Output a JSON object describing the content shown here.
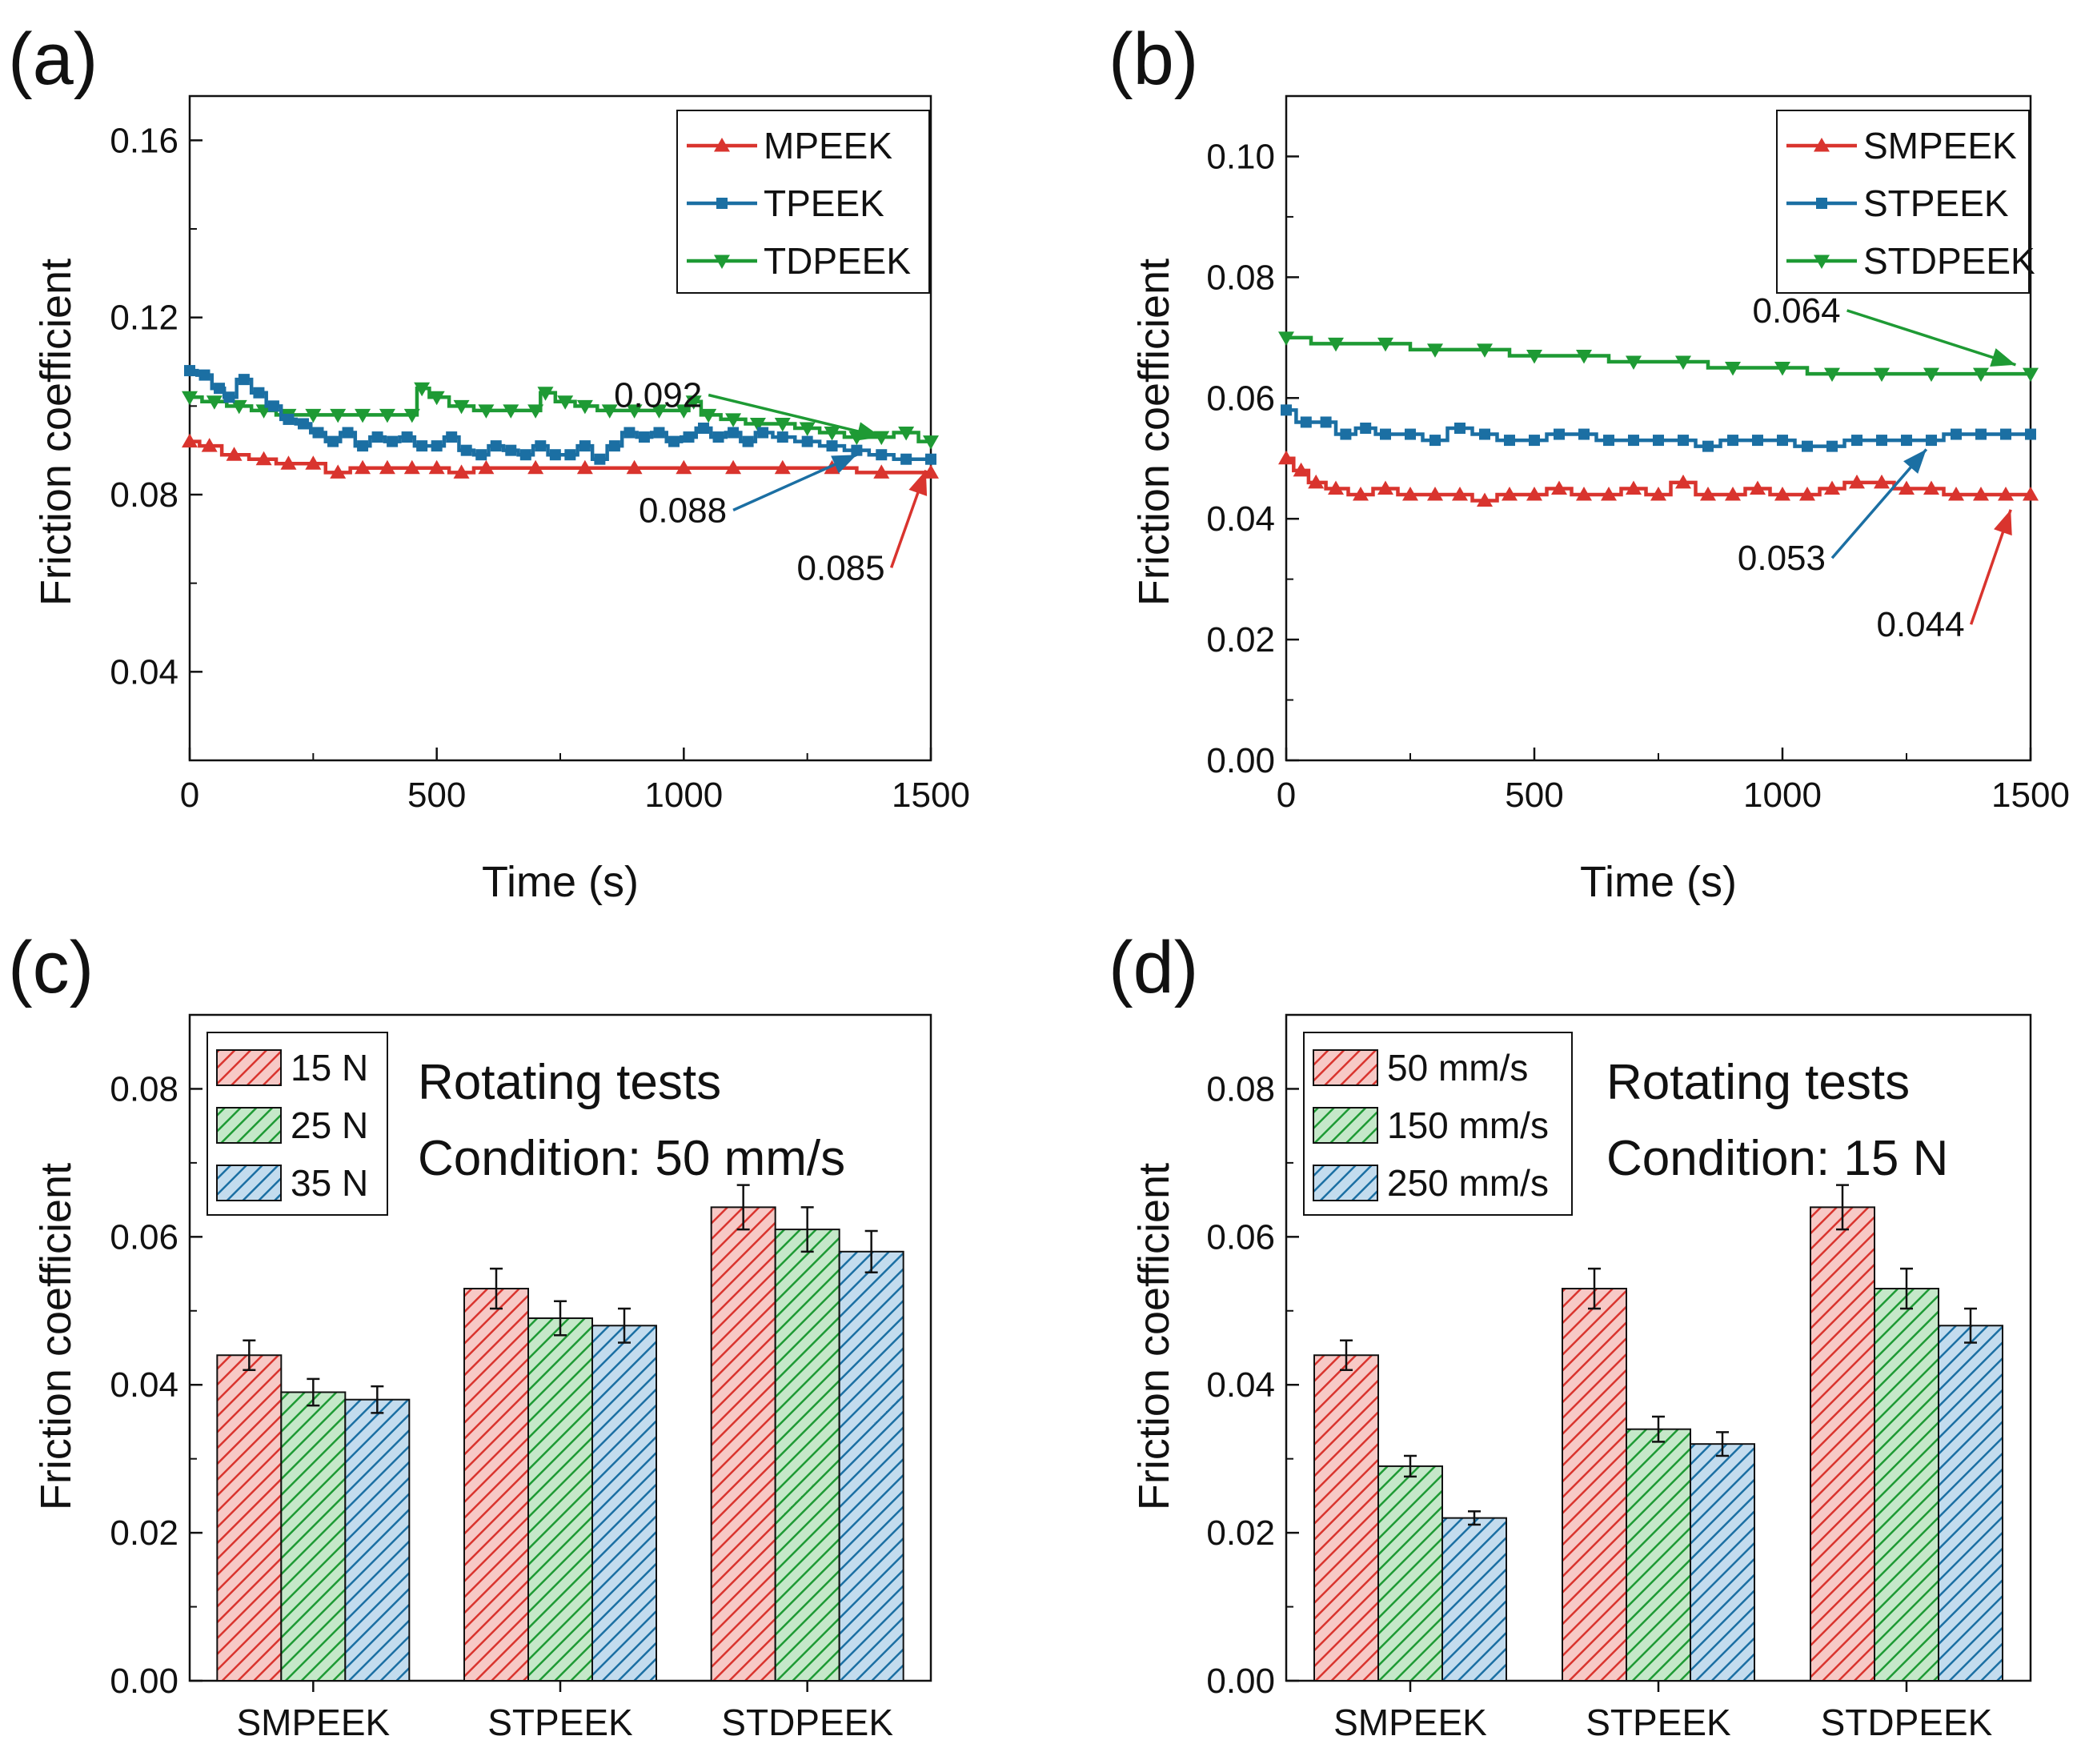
{
  "colors": {
    "red": "#d9342e",
    "blue": "#1b6fa3",
    "green": "#1e9a34",
    "axis": "#111111"
  },
  "chart_data": [
    {
      "id": "a",
      "type": "line",
      "panel_label": "(a)",
      "xlabel": "Time (s)",
      "ylabel": "Friction coefficient",
      "xlim": [
        0,
        1500
      ],
      "ylim": [
        0.02,
        0.17
      ],
      "xticks": [
        "0",
        "500",
        "1000",
        "1500"
      ],
      "xtick_values": [
        0,
        500,
        1000,
        1500
      ],
      "yticks": [
        "0.04",
        "0.08",
        "0.12",
        "0.16"
      ],
      "ytick_values": [
        0.04,
        0.08,
        0.12,
        0.16
      ],
      "legend_position": "top-right",
      "series": [
        {
          "name": "MPEEK",
          "color_key": "red",
          "marker": "triangle-up",
          "points": [
            [
              0,
              0.092
            ],
            [
              40,
              0.091
            ],
            [
              90,
              0.089
            ],
            [
              150,
              0.088
            ],
            [
              200,
              0.087
            ],
            [
              250,
              0.087
            ],
            [
              300,
              0.085
            ],
            [
              350,
              0.086
            ],
            [
              400,
              0.086
            ],
            [
              450,
              0.086
            ],
            [
              500,
              0.086
            ],
            [
              550,
              0.085
            ],
            [
              600,
              0.086
            ],
            [
              700,
              0.086
            ],
            [
              800,
              0.086
            ],
            [
              900,
              0.086
            ],
            [
              1000,
              0.086
            ],
            [
              1100,
              0.086
            ],
            [
              1200,
              0.086
            ],
            [
              1300,
              0.086
            ],
            [
              1400,
              0.085
            ],
            [
              1500,
              0.085
            ]
          ]
        },
        {
          "name": "TPEEK",
          "color_key": "blue",
          "marker": "square",
          "points": [
            [
              0,
              0.108
            ],
            [
              30,
              0.107
            ],
            [
              60,
              0.104
            ],
            [
              80,
              0.102
            ],
            [
              110,
              0.106
            ],
            [
              140,
              0.103
            ],
            [
              170,
              0.1
            ],
            [
              200,
              0.097
            ],
            [
              230,
              0.096
            ],
            [
              260,
              0.094
            ],
            [
              290,
              0.092
            ],
            [
              320,
              0.094
            ],
            [
              350,
              0.091
            ],
            [
              380,
              0.093
            ],
            [
              410,
              0.092
            ],
            [
              440,
              0.093
            ],
            [
              470,
              0.091
            ],
            [
              500,
              0.091
            ],
            [
              530,
              0.093
            ],
            [
              560,
              0.09
            ],
            [
              590,
              0.089
            ],
            [
              620,
              0.091
            ],
            [
              650,
              0.09
            ],
            [
              680,
              0.089
            ],
            [
              710,
              0.091
            ],
            [
              740,
              0.089
            ],
            [
              770,
              0.089
            ],
            [
              800,
              0.091
            ],
            [
              830,
              0.088
            ],
            [
              860,
              0.091
            ],
            [
              890,
              0.094
            ],
            [
              920,
              0.093
            ],
            [
              950,
              0.094
            ],
            [
              980,
              0.092
            ],
            [
              1010,
              0.093
            ],
            [
              1040,
              0.095
            ],
            [
              1070,
              0.093
            ],
            [
              1100,
              0.094
            ],
            [
              1130,
              0.092
            ],
            [
              1160,
              0.094
            ],
            [
              1200,
              0.093
            ],
            [
              1250,
              0.092
            ],
            [
              1300,
              0.091
            ],
            [
              1350,
              0.09
            ],
            [
              1400,
              0.089
            ],
            [
              1450,
              0.088
            ],
            [
              1500,
              0.088
            ]
          ]
        },
        {
          "name": "TDPEEK",
          "color_key": "green",
          "marker": "triangle-down",
          "points": [
            [
              0,
              0.102
            ],
            [
              50,
              0.101
            ],
            [
              100,
              0.1
            ],
            [
              150,
              0.099
            ],
            [
              200,
              0.098
            ],
            [
              250,
              0.098
            ],
            [
              300,
              0.098
            ],
            [
              350,
              0.098
            ],
            [
              400,
              0.098
            ],
            [
              450,
              0.098
            ],
            [
              470,
              0.104
            ],
            [
              500,
              0.102
            ],
            [
              550,
              0.1
            ],
            [
              600,
              0.099
            ],
            [
              650,
              0.099
            ],
            [
              700,
              0.099
            ],
            [
              720,
              0.103
            ],
            [
              760,
              0.101
            ],
            [
              800,
              0.1
            ],
            [
              850,
              0.099
            ],
            [
              900,
              0.099
            ],
            [
              950,
              0.099
            ],
            [
              1000,
              0.099
            ],
            [
              1020,
              0.101
            ],
            [
              1050,
              0.098
            ],
            [
              1100,
              0.097
            ],
            [
              1150,
              0.096
            ],
            [
              1200,
              0.096
            ],
            [
              1250,
              0.095
            ],
            [
              1300,
              0.094
            ],
            [
              1350,
              0.093
            ],
            [
              1400,
              0.093
            ],
            [
              1450,
              0.094
            ],
            [
              1500,
              0.092
            ]
          ]
        }
      ],
      "annotations": [
        {
          "text": "0.092",
          "color_key": "green",
          "x": 1400,
          "y": 0.093,
          "text_x": 1050,
          "text_y": 0.1025,
          "align": "end"
        },
        {
          "text": "0.088",
          "color_key": "blue",
          "x": 1350,
          "y": 0.089,
          "text_x": 1100,
          "text_y": 0.0765,
          "align": "end"
        },
        {
          "text": "0.085",
          "color_key": "red",
          "x": 1490,
          "y": 0.0855,
          "text_x": 1420,
          "text_y": 0.0635,
          "align": "end"
        }
      ]
    },
    {
      "id": "b",
      "type": "line",
      "panel_label": "(b)",
      "xlabel": "Time (s)",
      "ylabel": "Friction coefficient",
      "xlim": [
        0,
        1500
      ],
      "ylim": [
        0,
        0.11
      ],
      "xticks": [
        "0",
        "500",
        "1000",
        "1500"
      ],
      "xtick_values": [
        0,
        500,
        1000,
        1500
      ],
      "yticks": [
        "0.00",
        "0.02",
        "0.04",
        "0.06",
        "0.08",
        "0.10"
      ],
      "ytick_values": [
        0,
        0.02,
        0.04,
        0.06,
        0.08,
        0.1
      ],
      "legend_position": "top-right",
      "series": [
        {
          "name": "SMPEEK",
          "color_key": "red",
          "marker": "triangle-up",
          "points": [
            [
              0,
              0.05
            ],
            [
              30,
              0.048
            ],
            [
              60,
              0.046
            ],
            [
              100,
              0.045
            ],
            [
              150,
              0.044
            ],
            [
              200,
              0.045
            ],
            [
              250,
              0.044
            ],
            [
              300,
              0.044
            ],
            [
              350,
              0.044
            ],
            [
              400,
              0.043
            ],
            [
              450,
              0.044
            ],
            [
              500,
              0.044
            ],
            [
              550,
              0.045
            ],
            [
              600,
              0.044
            ],
            [
              650,
              0.044
            ],
            [
              700,
              0.045
            ],
            [
              750,
              0.044
            ],
            [
              800,
              0.046
            ],
            [
              850,
              0.044
            ],
            [
              900,
              0.044
            ],
            [
              950,
              0.045
            ],
            [
              1000,
              0.044
            ],
            [
              1050,
              0.044
            ],
            [
              1100,
              0.045
            ],
            [
              1150,
              0.046
            ],
            [
              1200,
              0.046
            ],
            [
              1250,
              0.045
            ],
            [
              1300,
              0.045
            ],
            [
              1350,
              0.044
            ],
            [
              1400,
              0.044
            ],
            [
              1450,
              0.044
            ],
            [
              1500,
              0.044
            ]
          ]
        },
        {
          "name": "STPEEK",
          "color_key": "blue",
          "marker": "square",
          "points": [
            [
              0,
              0.058
            ],
            [
              40,
              0.056
            ],
            [
              80,
              0.056
            ],
            [
              120,
              0.054
            ],
            [
              160,
              0.055
            ],
            [
              200,
              0.054
            ],
            [
              250,
              0.054
            ],
            [
              300,
              0.053
            ],
            [
              350,
              0.055
            ],
            [
              400,
              0.054
            ],
            [
              450,
              0.053
            ],
            [
              500,
              0.053
            ],
            [
              550,
              0.054
            ],
            [
              600,
              0.054
            ],
            [
              650,
              0.053
            ],
            [
              700,
              0.053
            ],
            [
              750,
              0.053
            ],
            [
              800,
              0.053
            ],
            [
              850,
              0.052
            ],
            [
              900,
              0.053
            ],
            [
              950,
              0.053
            ],
            [
              1000,
              0.053
            ],
            [
              1050,
              0.052
            ],
            [
              1100,
              0.052
            ],
            [
              1150,
              0.053
            ],
            [
              1200,
              0.053
            ],
            [
              1250,
              0.053
            ],
            [
              1300,
              0.053
            ],
            [
              1350,
              0.054
            ],
            [
              1400,
              0.054
            ],
            [
              1450,
              0.054
            ],
            [
              1500,
              0.054
            ]
          ]
        },
        {
          "name": "STDPEEK",
          "color_key": "green",
          "marker": "triangle-down",
          "points": [
            [
              0,
              0.07
            ],
            [
              100,
              0.069
            ],
            [
              200,
              0.069
            ],
            [
              300,
              0.068
            ],
            [
              400,
              0.068
            ],
            [
              500,
              0.067
            ],
            [
              600,
              0.067
            ],
            [
              700,
              0.066
            ],
            [
              800,
              0.066
            ],
            [
              900,
              0.065
            ],
            [
              1000,
              0.065
            ],
            [
              1100,
              0.064
            ],
            [
              1200,
              0.064
            ],
            [
              1300,
              0.064
            ],
            [
              1400,
              0.064
            ],
            [
              1500,
              0.064
            ]
          ]
        }
      ],
      "annotations": [
        {
          "text": "0.064",
          "color_key": "green",
          "x": 1470,
          "y": 0.0655,
          "text_x": 1130,
          "text_y": 0.0745,
          "align": "end"
        },
        {
          "text": "0.053",
          "color_key": "blue",
          "x": 1290,
          "y": 0.0515,
          "text_x": 1100,
          "text_y": 0.0335,
          "align": "end"
        },
        {
          "text": "0.044",
          "color_key": "red",
          "x": 1460,
          "y": 0.0415,
          "text_x": 1380,
          "text_y": 0.0225,
          "align": "end"
        }
      ]
    },
    {
      "id": "c",
      "type": "bar",
      "panel_label": "(c)",
      "xlabel": "",
      "ylabel": "Friction coefficient",
      "ylim": [
        0,
        0.09
      ],
      "yticks": [
        "0.00",
        "0.02",
        "0.04",
        "0.06",
        "0.08"
      ],
      "ytick_values": [
        0,
        0.02,
        0.04,
        0.06,
        0.08
      ],
      "categories": [
        "SMPEEK",
        "STPEEK",
        "STDPEEK"
      ],
      "legend_position": "top-left",
      "condition": [
        "Rotating tests",
        "Condition: 50 mm/s"
      ],
      "series": [
        {
          "name": "15 N",
          "color_key": "red",
          "values": [
            0.044,
            0.053,
            0.064
          ],
          "errors": [
            0.002,
            0.0027,
            0.003
          ]
        },
        {
          "name": "25 N",
          "color_key": "green",
          "values": [
            0.039,
            0.049,
            0.061
          ],
          "errors": [
            0.0018,
            0.0023,
            0.003
          ]
        },
        {
          "name": "35 N",
          "color_key": "blue",
          "values": [
            0.038,
            0.048,
            0.058
          ],
          "errors": [
            0.0018,
            0.0023,
            0.0028
          ]
        }
      ]
    },
    {
      "id": "d",
      "type": "bar",
      "panel_label": "(d)",
      "xlabel": "",
      "ylabel": "Friction coefficient",
      "ylim": [
        0,
        0.09
      ],
      "yticks": [
        "0.00",
        "0.02",
        "0.04",
        "0.06",
        "0.08"
      ],
      "ytick_values": [
        0,
        0.02,
        0.04,
        0.06,
        0.08
      ],
      "categories": [
        "SMPEEK",
        "STPEEK",
        "STDPEEK"
      ],
      "legend_position": "top-left",
      "condition": [
        "Rotating tests",
        "Condition: 15 N"
      ],
      "series": [
        {
          "name": "50 mm/s",
          "color_key": "red",
          "values": [
            0.044,
            0.053,
            0.064
          ],
          "errors": [
            0.002,
            0.0027,
            0.003
          ]
        },
        {
          "name": "150 mm/s",
          "color_key": "green",
          "values": [
            0.029,
            0.034,
            0.053
          ],
          "errors": [
            0.0014,
            0.0017,
            0.0027
          ]
        },
        {
          "name": "250 mm/s",
          "color_key": "blue",
          "values": [
            0.022,
            0.032,
            0.048
          ],
          "errors": [
            0.0009,
            0.0016,
            0.0023
          ]
        }
      ]
    }
  ]
}
